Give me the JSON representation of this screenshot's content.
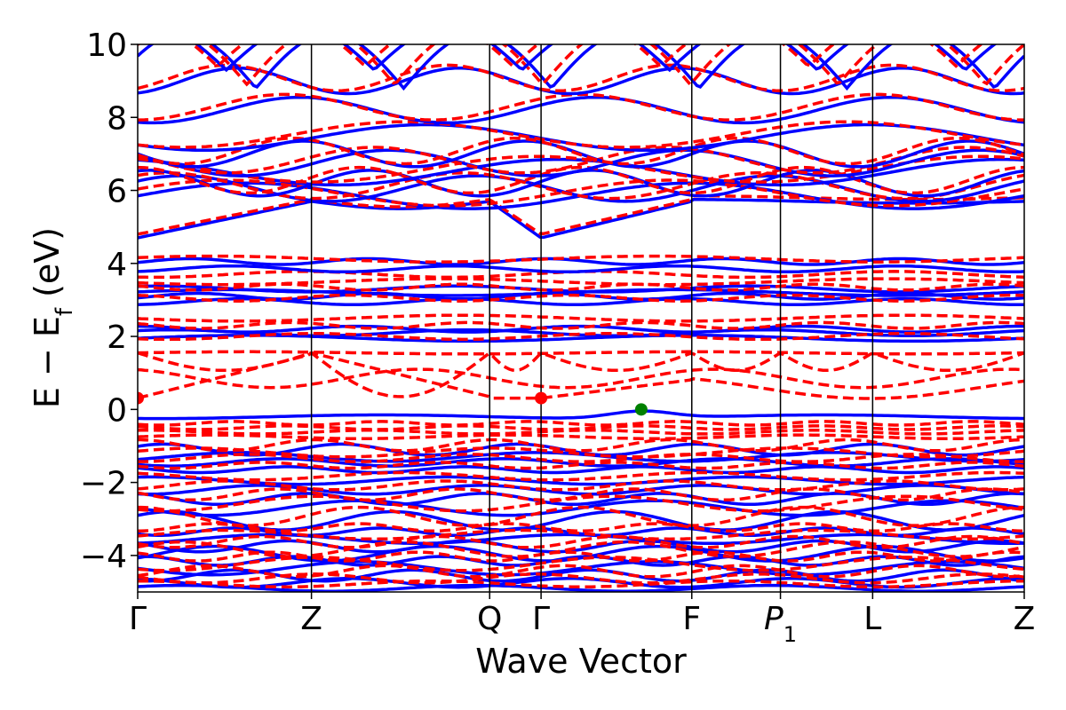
{
  "chart_data": {
    "type": "line",
    "title": "",
    "xlabel": "Wave Vector",
    "ylabel_parts": {
      "main": "E − E",
      "sub": "f",
      "unit": " (eV)"
    },
    "ylim": [
      -5,
      10
    ],
    "yticks": [
      -4,
      -2,
      0,
      2,
      4,
      6,
      8,
      10
    ],
    "ytick_labels": [
      "−4",
      "−2",
      "0",
      "2",
      "4",
      "6",
      "8",
      "10"
    ],
    "kpath": [
      {
        "label": "Γ",
        "pos": 0.0
      },
      {
        "label": "Z",
        "pos": 0.196
      },
      {
        "label": "Q",
        "pos": 0.397
      },
      {
        "label": "Γ",
        "pos": 0.455
      },
      {
        "label": "F",
        "pos": 0.625
      },
      {
        "label": "P",
        "sub": "1",
        "pos": 0.725
      },
      {
        "label": "L",
        "pos": 0.829
      },
      {
        "label": "Z",
        "pos": 1.0
      }
    ],
    "series": [
      {
        "style": "solid",
        "color": "#0000ff"
      },
      {
        "style": "dashed",
        "color": "#ff0000"
      }
    ],
    "markers": [
      {
        "x": 0.0,
        "y": 0.31,
        "color": "#ff0000"
      },
      {
        "x": 0.455,
        "y": 0.31,
        "color": "#ff0000"
      },
      {
        "x": 0.568,
        "y": 0.0,
        "color": "#008000"
      }
    ]
  }
}
